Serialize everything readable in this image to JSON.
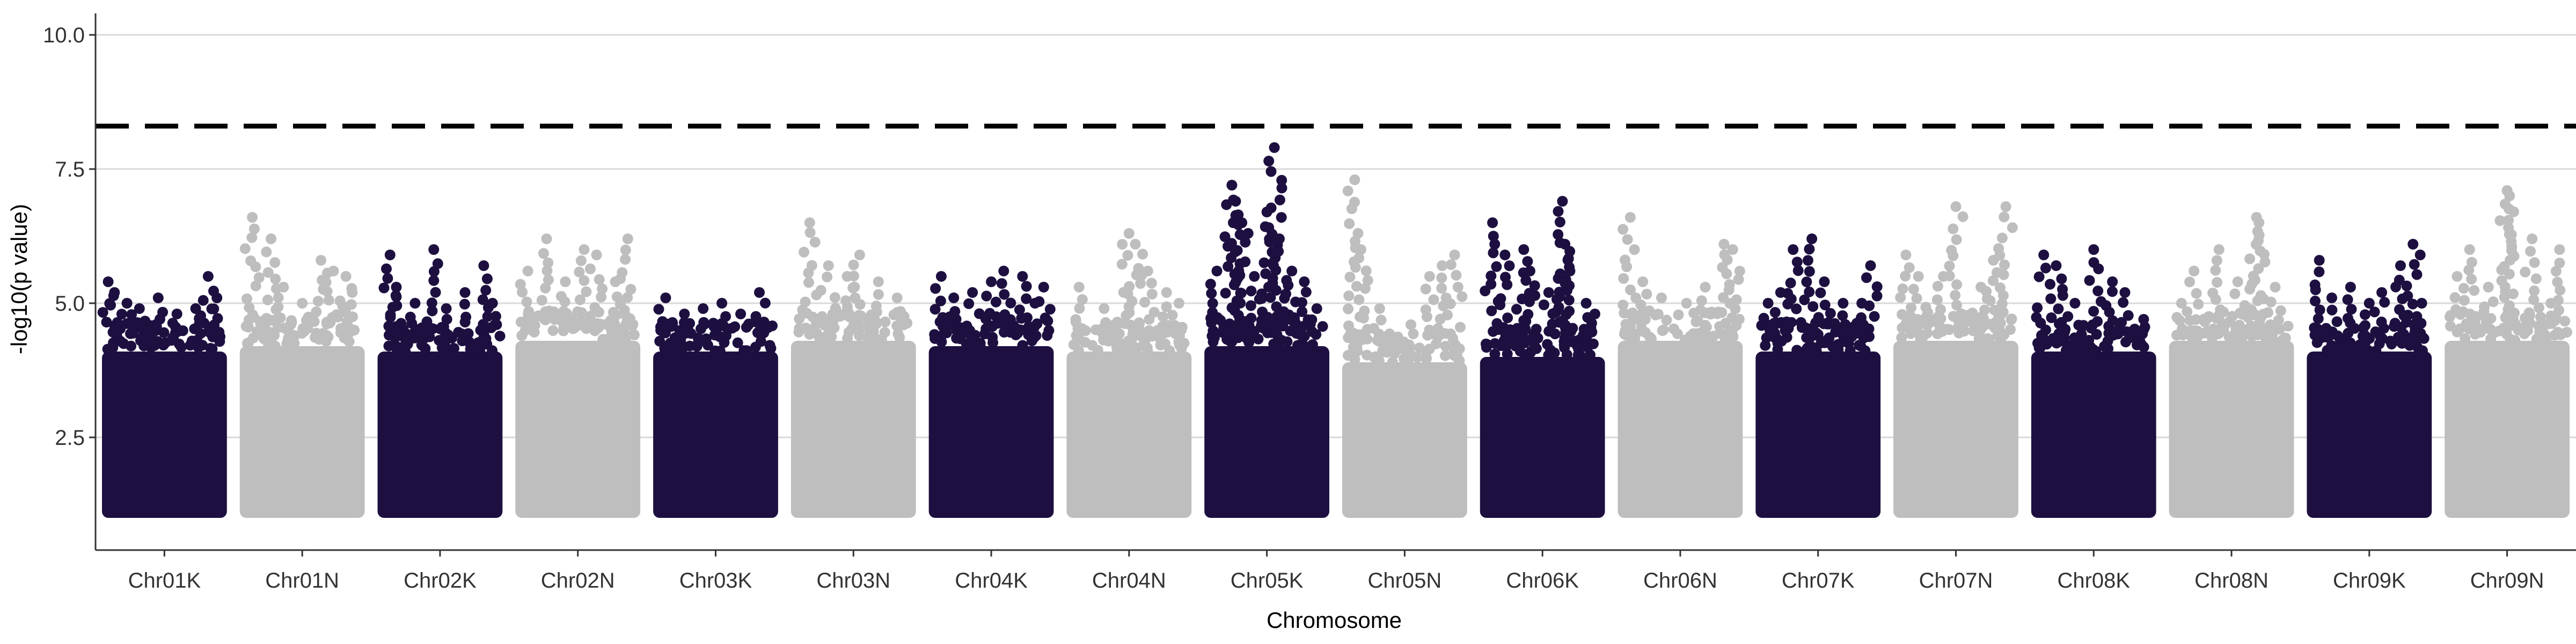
{
  "chart_data": {
    "type": "scatter",
    "xlabel": "Chromosome",
    "ylabel": "-log10(p value)",
    "ylim": [
      0.4,
      10.4
    ],
    "y_ticks": [
      2.5,
      5.0,
      7.5,
      10.0
    ],
    "y_tick_labels": [
      "2.5",
      "5.0",
      "7.5",
      "10.0"
    ],
    "grid": "horizontal",
    "threshold": 8.3,
    "colors": {
      "odd": "#1d1040",
      "even": "#bebebe",
      "threshold": "#000000",
      "grid": "#d9d9d9"
    },
    "categories": [
      "Chr01K",
      "Chr01N",
      "Chr02K",
      "Chr02N",
      "Chr03K",
      "Chr03N",
      "Chr04K",
      "Chr04N",
      "Chr05K",
      "Chr05N",
      "Chr06K",
      "Chr06N",
      "Chr07K",
      "Chr07N",
      "Chr08K",
      "Chr08N",
      "Chr09K",
      "Chr09N"
    ],
    "series": [
      {
        "chromosome": "Chr01K",
        "color": "odd",
        "base_top": 4.1,
        "top_points": [
          [
            0.05,
            5.4
          ],
          [
            0.1,
            5.2
          ],
          [
            0.2,
            5.0
          ],
          [
            0.3,
            4.9
          ],
          [
            0.45,
            5.1
          ],
          [
            0.6,
            4.8
          ],
          [
            0.75,
            4.9
          ],
          [
            0.85,
            5.5
          ],
          [
            0.92,
            5.1
          ]
        ]
      },
      {
        "chromosome": "Chr01N",
        "color": "even",
        "base_top": 4.2,
        "top_points": [
          [
            0.1,
            6.6
          ],
          [
            0.25,
            6.2
          ],
          [
            0.35,
            5.3
          ],
          [
            0.5,
            5.0
          ],
          [
            0.65,
            5.8
          ],
          [
            0.75,
            5.6
          ],
          [
            0.85,
            5.5
          ],
          [
            0.9,
            5.2
          ]
        ]
      },
      {
        "chromosome": "Chr02K",
        "color": "odd",
        "base_top": 4.1,
        "top_points": [
          [
            0.1,
            5.9
          ],
          [
            0.15,
            5.3
          ],
          [
            0.3,
            5.0
          ],
          [
            0.45,
            6.0
          ],
          [
            0.55,
            4.9
          ],
          [
            0.7,
            5.2
          ],
          [
            0.85,
            5.7
          ],
          [
            0.92,
            5.0
          ]
        ]
      },
      {
        "chromosome": "Chr02N",
        "color": "even",
        "base_top": 4.3,
        "top_points": [
          [
            0.1,
            5.6
          ],
          [
            0.25,
            6.2
          ],
          [
            0.4,
            5.4
          ],
          [
            0.55,
            6.0
          ],
          [
            0.65,
            5.9
          ],
          [
            0.8,
            5.4
          ],
          [
            0.9,
            6.2
          ]
        ]
      },
      {
        "chromosome": "Chr03K",
        "color": "odd",
        "base_top": 4.1,
        "top_points": [
          [
            0.1,
            5.1
          ],
          [
            0.25,
            4.8
          ],
          [
            0.4,
            4.9
          ],
          [
            0.55,
            5.0
          ],
          [
            0.7,
            4.8
          ],
          [
            0.85,
            5.2
          ]
        ]
      },
      {
        "chromosome": "Chr03N",
        "color": "even",
        "base_top": 4.3,
        "top_points": [
          [
            0.15,
            6.5
          ],
          [
            0.3,
            5.7
          ],
          [
            0.45,
            5.5
          ],
          [
            0.55,
            5.9
          ],
          [
            0.7,
            5.4
          ],
          [
            0.85,
            5.1
          ]
        ]
      },
      {
        "chromosome": "Chr04K",
        "color": "odd",
        "base_top": 4.2,
        "top_points": [
          [
            0.1,
            5.5
          ],
          [
            0.2,
            5.1
          ],
          [
            0.35,
            5.2
          ],
          [
            0.5,
            5.4
          ],
          [
            0.6,
            5.6
          ],
          [
            0.75,
            5.5
          ],
          [
            0.85,
            5.0
          ],
          [
            0.92,
            5.3
          ]
        ]
      },
      {
        "chromosome": "Chr04N",
        "color": "even",
        "base_top": 4.1,
        "top_points": [
          [
            0.1,
            5.3
          ],
          [
            0.3,
            4.9
          ],
          [
            0.5,
            6.3
          ],
          [
            0.55,
            6.1
          ],
          [
            0.65,
            5.6
          ],
          [
            0.8,
            5.2
          ],
          [
            0.9,
            5.0
          ]
        ]
      },
      {
        "chromosome": "Chr05K",
        "color": "odd",
        "base_top": 4.2,
        "top_points": [
          [
            0.1,
            5.6
          ],
          [
            0.22,
            7.2
          ],
          [
            0.25,
            6.9
          ],
          [
            0.3,
            6.5
          ],
          [
            0.4,
            5.5
          ],
          [
            0.5,
            6.7
          ],
          [
            0.56,
            7.9
          ],
          [
            0.6,
            6.2
          ],
          [
            0.7,
            5.6
          ],
          [
            0.8,
            5.4
          ],
          [
            0.9,
            4.9
          ]
        ]
      },
      {
        "chromosome": "Chr05N",
        "color": "even",
        "base_top": 3.9,
        "top_points": [
          [
            0.1,
            7.3
          ],
          [
            0.15,
            6.0
          ],
          [
            0.3,
            4.9
          ],
          [
            0.55,
            4.6
          ],
          [
            0.7,
            5.5
          ],
          [
            0.8,
            5.7
          ],
          [
            0.9,
            5.9
          ]
        ]
      },
      {
        "chromosome": "Chr06K",
        "color": "odd",
        "base_top": 4.0,
        "top_points": [
          [
            0.1,
            6.5
          ],
          [
            0.2,
            5.9
          ],
          [
            0.35,
            6.0
          ],
          [
            0.4,
            5.6
          ],
          [
            0.55,
            5.2
          ],
          [
            0.66,
            6.9
          ],
          [
            0.68,
            6.1
          ],
          [
            0.72,
            5.6
          ],
          [
            0.85,
            5.0
          ],
          [
            0.92,
            4.8
          ]
        ]
      },
      {
        "chromosome": "Chr06N",
        "color": "even",
        "base_top": 4.3,
        "top_points": [
          [
            0.1,
            6.6
          ],
          [
            0.2,
            5.4
          ],
          [
            0.35,
            5.1
          ],
          [
            0.55,
            5.0
          ],
          [
            0.7,
            5.3
          ],
          [
            0.85,
            6.1
          ],
          [
            0.92,
            6.0
          ]
        ]
      },
      {
        "chromosome": "Chr07K",
        "color": "odd",
        "base_top": 4.1,
        "top_points": [
          [
            0.1,
            5.0
          ],
          [
            0.2,
            5.2
          ],
          [
            0.3,
            6.0
          ],
          [
            0.45,
            6.2
          ],
          [
            0.55,
            5.4
          ],
          [
            0.7,
            5.0
          ],
          [
            0.85,
            5.0
          ],
          [
            0.92,
            5.7
          ]
        ]
      },
      {
        "chromosome": "Chr07N",
        "color": "even",
        "base_top": 4.3,
        "top_points": [
          [
            0.1,
            5.9
          ],
          [
            0.2,
            5.5
          ],
          [
            0.4,
            5.5
          ],
          [
            0.5,
            6.8
          ],
          [
            0.7,
            5.3
          ],
          [
            0.8,
            5.8
          ],
          [
            0.9,
            6.8
          ]
        ]
      },
      {
        "chromosome": "Chr08K",
        "color": "odd",
        "base_top": 4.1,
        "top_points": [
          [
            0.1,
            5.9
          ],
          [
            0.2,
            5.7
          ],
          [
            0.35,
            5.0
          ],
          [
            0.5,
            6.0
          ],
          [
            0.65,
            5.4
          ],
          [
            0.75,
            5.2
          ],
          [
            0.9,
            4.7
          ]
        ]
      },
      {
        "chromosome": "Chr08N",
        "color": "even",
        "base_top": 4.3,
        "top_points": [
          [
            0.1,
            5.0
          ],
          [
            0.2,
            5.6
          ],
          [
            0.4,
            6.0
          ],
          [
            0.55,
            5.4
          ],
          [
            0.7,
            6.6
          ],
          [
            0.72,
            6.5
          ],
          [
            0.85,
            5.3
          ]
        ]
      },
      {
        "chromosome": "Chr09K",
        "color": "odd",
        "base_top": 4.1,
        "top_points": [
          [
            0.1,
            5.8
          ],
          [
            0.2,
            5.1
          ],
          [
            0.35,
            5.3
          ],
          [
            0.5,
            5.0
          ],
          [
            0.6,
            5.2
          ],
          [
            0.75,
            5.7
          ],
          [
            0.85,
            6.1
          ],
          [
            0.92,
            5.0
          ]
        ]
      },
      {
        "chromosome": "Chr09N",
        "color": "even",
        "base_top": 4.3,
        "top_points": [
          [
            0.1,
            5.5
          ],
          [
            0.2,
            6.0
          ],
          [
            0.35,
            5.3
          ],
          [
            0.5,
            7.1
          ],
          [
            0.52,
            7.0
          ],
          [
            0.7,
            6.2
          ],
          [
            0.85,
            5.0
          ],
          [
            0.92,
            6.0
          ]
        ]
      }
    ]
  }
}
